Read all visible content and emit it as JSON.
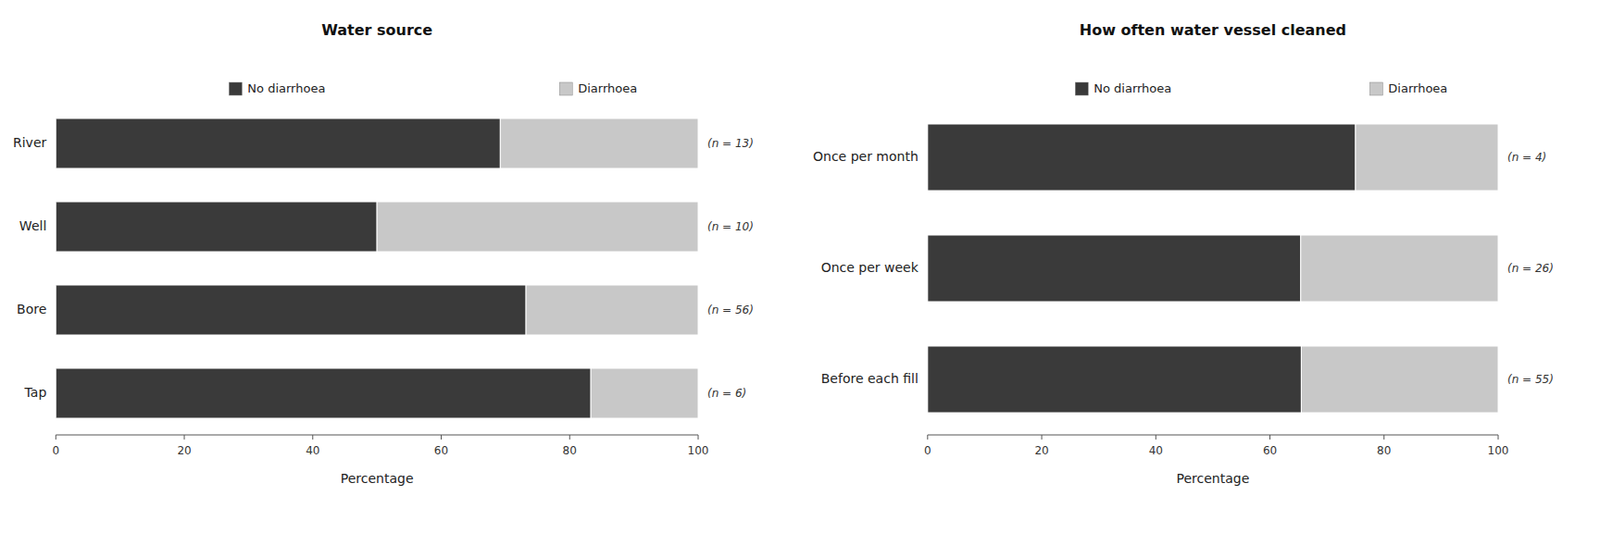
{
  "chart_data": [
    {
      "type": "bar",
      "orientation": "horizontal",
      "stacked": true,
      "title": "Water source",
      "categories": [
        "River",
        "Well",
        "Bore",
        "Tap"
      ],
      "series": [
        {
          "name": "No diarrhoea",
          "color": "#3a3a3a",
          "values": [
            69.2,
            50.0,
            73.2,
            83.3
          ]
        },
        {
          "name": "Diarrhoea",
          "color": "#c8c8c8",
          "values": [
            30.8,
            50.0,
            26.8,
            16.7
          ]
        }
      ],
      "annotations": [
        "(n = 13)",
        "(n = 10)",
        "(n = 56)",
        "(n = 6)"
      ],
      "xlabel": "Percentage",
      "xlim": [
        0,
        100
      ],
      "xticks": [
        0,
        20,
        40,
        60,
        80,
        100
      ]
    },
    {
      "type": "bar",
      "orientation": "horizontal",
      "stacked": true,
      "title": "How often water vessel cleaned",
      "categories": [
        "Once per month",
        "Once per week",
        "Before each fill"
      ],
      "series": [
        {
          "name": "No diarrhoea",
          "color": "#3a3a3a",
          "values": [
            75.0,
            65.4,
            65.5
          ]
        },
        {
          "name": "Diarrhoea",
          "color": "#c8c8c8",
          "values": [
            25.0,
            34.6,
            34.5
          ]
        }
      ],
      "annotations": [
        "(n = 4)",
        "(n = 26)",
        "(n = 55)"
      ],
      "xlabel": "Percentage",
      "xlim": [
        0,
        100
      ],
      "xticks": [
        0,
        20,
        40,
        60,
        80,
        100
      ]
    }
  ]
}
